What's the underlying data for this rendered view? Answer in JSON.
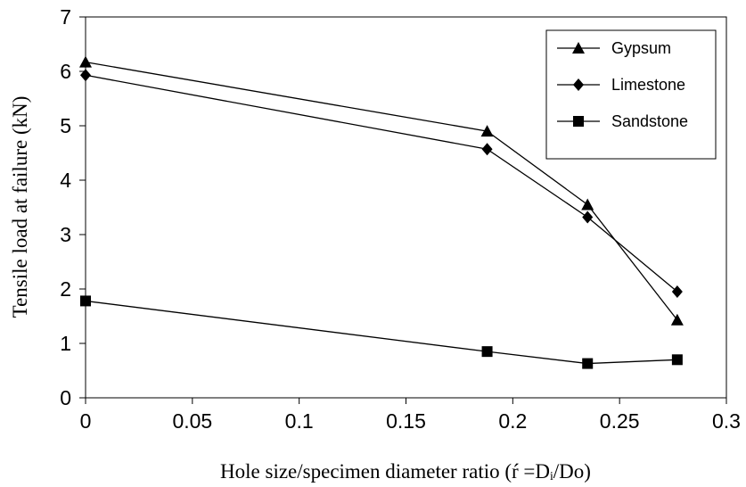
{
  "chart_data": {
    "type": "line",
    "title": "",
    "xlabel": "Hole size/specimen diameter ratio (ŕ =Dᵢ/Do)",
    "ylabel": "Tensile load at failure (kN)",
    "xlim": [
      0,
      0.3
    ],
    "ylim": [
      0,
      7
    ],
    "xticks": [
      "0",
      "0.05",
      "0.1",
      "0.15",
      "0.2",
      "0.25",
      "0.3"
    ],
    "yticks": [
      "0",
      "1",
      "2",
      "3",
      "4",
      "5",
      "6",
      "7"
    ],
    "grid": false,
    "legend_position": "top-right",
    "series": [
      {
        "name": "Gypsum",
        "marker": "triangle",
        "x": [
          0,
          0.188,
          0.235,
          0.277
        ],
        "values": [
          6.17,
          4.9,
          3.55,
          1.43
        ]
      },
      {
        "name": "Limestone",
        "marker": "diamond",
        "x": [
          0,
          0.188,
          0.235,
          0.277
        ],
        "values": [
          5.93,
          4.57,
          3.32,
          1.95
        ]
      },
      {
        "name": "Sandstone",
        "marker": "square",
        "x": [
          0,
          0.188,
          0.235,
          0.277
        ],
        "values": [
          1.78,
          0.85,
          0.63,
          0.7
        ]
      }
    ],
    "colors": {
      "line": "#000000",
      "background": "#ffffff"
    }
  }
}
